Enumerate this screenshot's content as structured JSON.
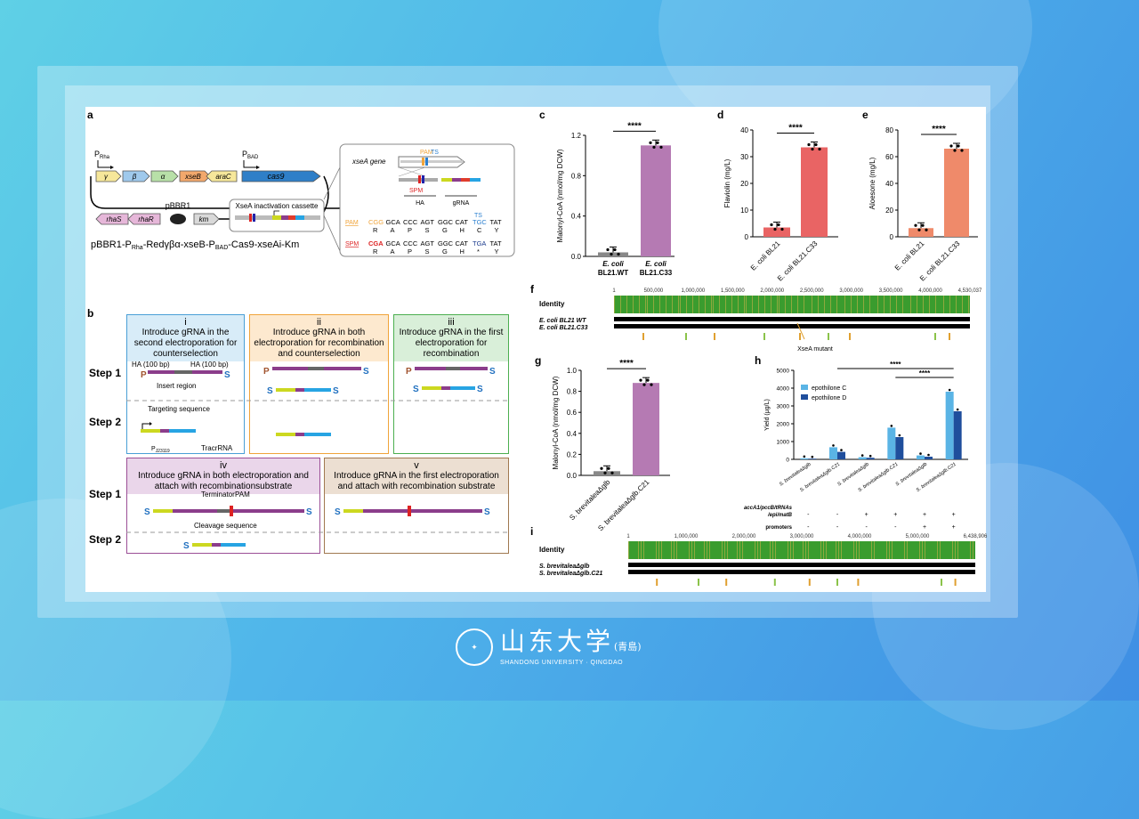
{
  "panel_letters": [
    "a",
    "b",
    "c",
    "d",
    "e",
    "f",
    "g",
    "h",
    "i"
  ],
  "panel_a": {
    "promoter_rha": "P",
    "promoter_rha_sub": "Rha",
    "promoter_bad": "P",
    "promoter_bad_sub": "BAD",
    "genes_row1": [
      "γ",
      "β",
      "α",
      "xseB",
      "araC",
      "cas9"
    ],
    "genes_row2": [
      "rhaS",
      "rhaR",
      "km"
    ],
    "plasmid": "pBBR1",
    "cassette_label": "XseA inactivation cassette",
    "caption": "pBBR1-P",
    "caption_sub1": "Rha",
    "caption_mid": "-Redγβα-xseB-P",
    "caption_sub2": "BAD",
    "caption_end": "-Cas9-xseAi-Km",
    "inset": {
      "gene": "xseA gene",
      "pam": "PAM",
      "ts": "TS",
      "spm": "SPM",
      "ha": "HA",
      "grna": "gRNA",
      "row1_label": "PAM",
      "row1_codons": [
        "CGG",
        "GCA",
        "CCC",
        "AGT",
        "GGC",
        "CAT",
        "TGC",
        "TAT"
      ],
      "row1_aa": [
        "R",
        "A",
        "P",
        "S",
        "G",
        "H",
        "C",
        "Y"
      ],
      "row2_label": "SPM",
      "row2_codons": [
        "CGA",
        "GCA",
        "CCC",
        "AGT",
        "GGC",
        "CAT",
        "TGA",
        "TAT"
      ],
      "row2_aa": [
        "R",
        "A",
        "P",
        "S",
        "G",
        "H",
        "*",
        "Y"
      ]
    }
  },
  "panel_b": {
    "steps": [
      "Step 1",
      "Step 2",
      "Step 1",
      "Step 2"
    ],
    "boxes": [
      {
        "num": "i",
        "title": "Introduce gRNA in the second electroporation for counterselection",
        "color": "#4a9fd6",
        "head_bg": "#d8ecf8"
      },
      {
        "num": "ii",
        "title": "Introduce gRNA in both electroporation for recombination and counterselection",
        "color": "#f0a43a",
        "head_bg": "#fde9cf"
      },
      {
        "num": "iii",
        "title": "Introduce gRNA in the first electroporation for recombination",
        "color": "#4caf50",
        "head_bg": "#d9efd9"
      },
      {
        "num": "iv",
        "title": "Introduce gRNA in both electroporation and attach with recombinationsubstrate",
        "color": "#9b4f96",
        "head_bg": "#ead6ea"
      },
      {
        "num": "v",
        "title": "Introduce gRNA in the first electroporation and attach with recombination substrate",
        "color": "#a07850",
        "head_bg": "#ecdfd2"
      }
    ],
    "labels": {
      "ha_left": "HA (100 bp)",
      "ha_right": "HA (100 bp)",
      "insert": "Insert region",
      "targeting": "Targeting sequence",
      "promoter": "P",
      "promoter_sub": "J23119",
      "tracr": "TracrRNA",
      "terminator": "Terminator",
      "pam": "PAM",
      "cleavage": "Cleavage sequence",
      "p_letter": "P",
      "s_letter": "S"
    }
  },
  "chart_c": {
    "type": "bar",
    "ylabel": "Malonyl-CoA (nmol/mg DCW)",
    "yticks": [
      "0.0",
      "0.4",
      "0.8",
      "1.2"
    ],
    "ylim": [
      0,
      1.2
    ],
    "categories": [
      [
        "E. coli",
        "BL21.WT"
      ],
      [
        "E. coli",
        "BL21.C33"
      ]
    ],
    "values": [
      0.04,
      1.1
    ],
    "colors": [
      "#888888",
      "#b57ab3"
    ],
    "sig": "****"
  },
  "chart_d": {
    "type": "bar",
    "ylabel": "Flaviolin (mg/L)",
    "yticks": [
      "0",
      "10",
      "20",
      "30",
      "40"
    ],
    "ylim": [
      0,
      40
    ],
    "categories": [
      "E. coli BL21",
      "E. coli BL21.C33"
    ],
    "values": [
      3.5,
      33.5
    ],
    "colors": [
      "#e96464",
      "#e96464"
    ],
    "sig": "****"
  },
  "chart_e": {
    "type": "bar",
    "ylabel": "Aloesone (mg/L)",
    "yticks": [
      "0",
      "20",
      "40",
      "60",
      "80"
    ],
    "ylim": [
      0,
      80
    ],
    "categories": [
      "E. coli BL21",
      "E. coli BL21.C33"
    ],
    "values": [
      6.5,
      66
    ],
    "colors": [
      "#ef8a6a",
      "#ef8a6a"
    ],
    "sig": "****"
  },
  "chart_f": {
    "identity": "Identity",
    "ticks": [
      "1",
      "500,000",
      "1,000,000",
      "1,500,000",
      "2,000,000",
      "2,500,000",
      "3,000,000",
      "3,500,000",
      "4,000,000",
      "4,530,037"
    ],
    "tracks": [
      "E. coli BL21 WT",
      "E. coli BL21.C33"
    ],
    "mutant": "XseA mutant"
  },
  "chart_g": {
    "type": "bar",
    "ylabel": "Malonyl-CoA (nmol/mg DCW)",
    "yticks": [
      "0.0",
      "0.2",
      "0.4",
      "0.6",
      "0.8",
      "1.0"
    ],
    "ylim": [
      0,
      1.0
    ],
    "categories": [
      "S. brevitaleaΔglb",
      "S. brevitaleaΔglb.C21"
    ],
    "values": [
      0.04,
      0.88
    ],
    "colors": [
      "#888888",
      "#b57ab3"
    ],
    "sig": "****"
  },
  "chart_h": {
    "type": "bar",
    "ylabel": "Yield (μg/L)",
    "yticks": [
      "0",
      "1000",
      "2000",
      "3000",
      "4000",
      "5000"
    ],
    "ylim": [
      0,
      5000
    ],
    "categories": [
      "S. brevitaleaΔglb",
      "S. brevitaleaΔglb.C21",
      "S. brevitaleaΔglb",
      "S. brevitaleaΔglb.C21",
      "S. brevitaleaΔglb",
      "S. brevitaleaΔglb.C21"
    ],
    "series": [
      {
        "name": "epothilone C",
        "values": [
          60,
          680,
          120,
          1780,
          220,
          3800
        ],
        "color": "#5ab4e5"
      },
      {
        "name": "epothilone D",
        "values": [
          40,
          420,
          90,
          1250,
          150,
          2700
        ],
        "color": "#1f4e9c"
      }
    ],
    "row1_label": "accA1/pccB/tRNAs",
    "row1_label2": "/epi/matB",
    "row1": [
      "-",
      "-",
      "+",
      "+",
      "+",
      "+"
    ],
    "row2_label": "promoters",
    "row2": [
      "-",
      "-",
      "-",
      "-",
      "+",
      "+"
    ],
    "sig": [
      "****",
      "****"
    ]
  },
  "chart_i": {
    "identity": "Identity",
    "ticks": [
      "1",
      "1,000,000",
      "2,000,000",
      "3,000,000",
      "4,000,000",
      "5,000,000",
      "6,438,906"
    ],
    "tracks": [
      "S. brevitaleaΔglb",
      "S. brevitaleaΔglb.C21"
    ]
  },
  "logo": {
    "name": "山东大学",
    "sub": "SHANDONG UNIVERSITY · QINGDAO",
    "paren": "(青島)"
  }
}
